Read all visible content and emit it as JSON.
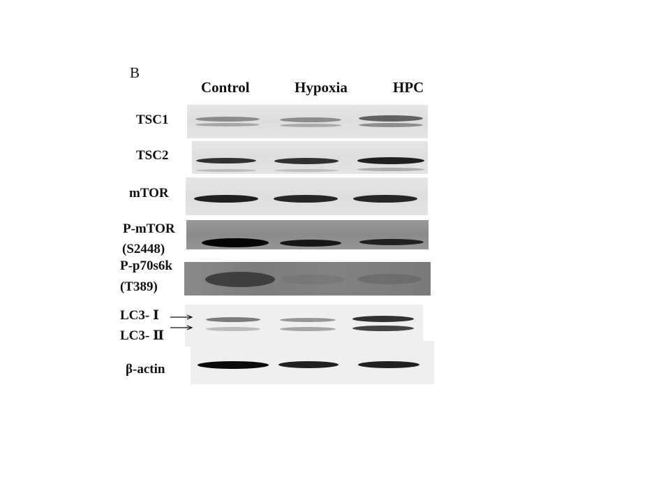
{
  "panel_label": "B",
  "lanes": [
    "Control",
    "Hypoxia",
    "HPC"
  ],
  "rows": [
    {
      "label": "TSC1"
    },
    {
      "label": "TSC2"
    },
    {
      "label": "mTOR"
    },
    {
      "label_line1": "P-mTOR",
      "label_line2": "(S2448)"
    },
    {
      "label_line1": "P-p70s6k",
      "label_line2": "(T389)"
    },
    {
      "label_line1": "LC3- Ⅰ",
      "label_line2": "LC3- Ⅱ"
    },
    {
      "label": "β-actin"
    }
  ]
}
